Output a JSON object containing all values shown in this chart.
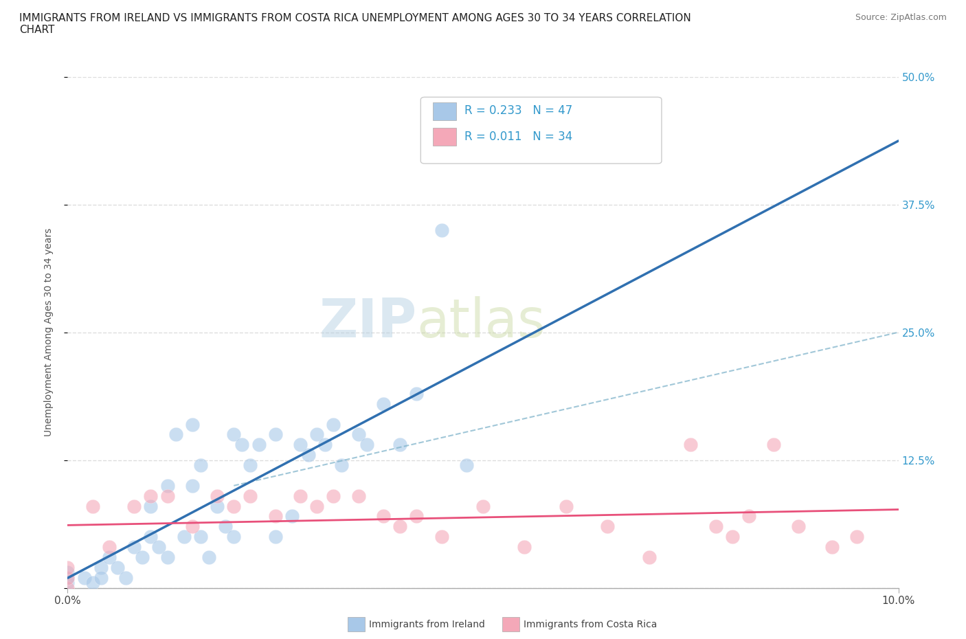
{
  "title": "IMMIGRANTS FROM IRELAND VS IMMIGRANTS FROM COSTA RICA UNEMPLOYMENT AMONG AGES 30 TO 34 YEARS CORRELATION\nCHART",
  "source": "Source: ZipAtlas.com",
  "ylabel": "Unemployment Among Ages 30 to 34 years",
  "xlim": [
    0.0,
    0.1
  ],
  "ylim": [
    0.0,
    0.5
  ],
  "xticks": [
    0.0,
    0.1
  ],
  "xticklabels": [
    "0.0%",
    "10.0%"
  ],
  "yticks": [
    0.0,
    0.125,
    0.25,
    0.375,
    0.5
  ],
  "yticklabels_right": [
    "",
    "12.5%",
    "25.0%",
    "37.5%",
    "50.0%"
  ],
  "ireland_R": 0.233,
  "ireland_N": 47,
  "costarica_R": 0.011,
  "costarica_N": 34,
  "ireland_color": "#a8c8e8",
  "costarica_color": "#f4a8b8",
  "trend_ireland_color": "#3070b0",
  "trend_costarica_color": "#e8507a",
  "trend_costarica_dashed_color": "#7ab0c8",
  "ireland_x": [
    0.0,
    0.0,
    0.0,
    0.002,
    0.003,
    0.004,
    0.004,
    0.005,
    0.006,
    0.007,
    0.008,
    0.009,
    0.01,
    0.01,
    0.011,
    0.012,
    0.012,
    0.013,
    0.014,
    0.015,
    0.015,
    0.016,
    0.016,
    0.017,
    0.018,
    0.019,
    0.02,
    0.02,
    0.021,
    0.022,
    0.023,
    0.025,
    0.025,
    0.027,
    0.028,
    0.029,
    0.03,
    0.031,
    0.032,
    0.033,
    0.035,
    0.036,
    0.038,
    0.04,
    0.042,
    0.045,
    0.048
  ],
  "ireland_y": [
    0.005,
    0.01,
    0.015,
    0.01,
    0.005,
    0.02,
    0.01,
    0.03,
    0.02,
    0.01,
    0.04,
    0.03,
    0.05,
    0.08,
    0.04,
    0.1,
    0.03,
    0.15,
    0.05,
    0.1,
    0.16,
    0.05,
    0.12,
    0.03,
    0.08,
    0.06,
    0.15,
    0.05,
    0.14,
    0.12,
    0.14,
    0.15,
    0.05,
    0.07,
    0.14,
    0.13,
    0.15,
    0.14,
    0.16,
    0.12,
    0.15,
    0.14,
    0.18,
    0.14,
    0.19,
    0.35,
    0.12
  ],
  "costarica_x": [
    0.0,
    0.0,
    0.0,
    0.003,
    0.005,
    0.008,
    0.01,
    0.012,
    0.015,
    0.018,
    0.02,
    0.022,
    0.025,
    0.028,
    0.03,
    0.032,
    0.035,
    0.038,
    0.04,
    0.042,
    0.045,
    0.05,
    0.055,
    0.06,
    0.065,
    0.07,
    0.075,
    0.078,
    0.08,
    0.082,
    0.085,
    0.088,
    0.092,
    0.095
  ],
  "costarica_y": [
    0.0,
    0.01,
    0.02,
    0.08,
    0.04,
    0.08,
    0.09,
    0.09,
    0.06,
    0.09,
    0.08,
    0.09,
    0.07,
    0.09,
    0.08,
    0.09,
    0.09,
    0.07,
    0.06,
    0.07,
    0.05,
    0.08,
    0.04,
    0.08,
    0.06,
    0.03,
    0.14,
    0.06,
    0.05,
    0.07,
    0.14,
    0.06,
    0.04,
    0.05
  ],
  "watermark_zip": "ZIP",
  "watermark_atlas": "atlas",
  "background_color": "#ffffff",
  "grid_color": "#dddddd",
  "title_fontsize": 11,
  "axis_label_fontsize": 10,
  "tick_fontsize": 11,
  "legend_fontsize": 12
}
